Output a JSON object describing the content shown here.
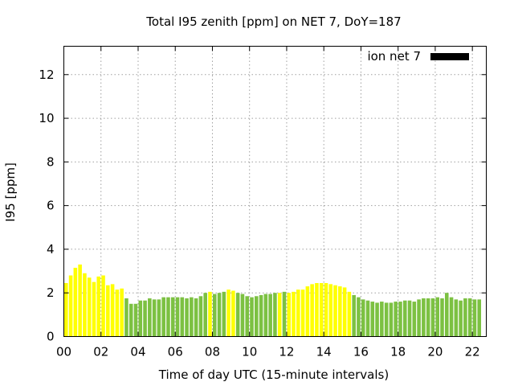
{
  "chart_data": {
    "type": "bar",
    "title": "Total I95 zenith [ppm] on NET 7, DoY=187",
    "xlabel": "Time of day UTC (15-minute intervals)",
    "ylabel": "I95 [ppm]",
    "ylim": [
      0,
      13.3
    ],
    "xlim": [
      0,
      22.75
    ],
    "y_ticks": [
      0,
      2,
      4,
      6,
      8,
      10,
      12
    ],
    "y_tick_labels": [
      "0",
      "2",
      "4",
      "6",
      "8",
      "10",
      "12"
    ],
    "x_ticks": [
      0,
      2,
      4,
      6,
      8,
      10,
      12,
      14,
      16,
      18,
      20,
      22
    ],
    "x_tick_labels": [
      "00",
      "02",
      "04",
      "06",
      "08",
      "10",
      "12",
      "14",
      "16",
      "18",
      "20",
      "22"
    ],
    "grid": true,
    "legend": {
      "label": "ion net 7",
      "color": "#000000",
      "placement": "top-right"
    },
    "colors": {
      "high": "#ffff00",
      "normal": "#7cc142"
    },
    "bar_interval_hours": 0.25,
    "bars": [
      {
        "x": 0.0,
        "v": 2.45,
        "c": "high"
      },
      {
        "x": 0.25,
        "v": 2.8,
        "c": "high"
      },
      {
        "x": 0.5,
        "v": 3.15,
        "c": "high"
      },
      {
        "x": 0.75,
        "v": 3.3,
        "c": "high"
      },
      {
        "x": 1.0,
        "v": 2.9,
        "c": "high"
      },
      {
        "x": 1.25,
        "v": 2.7,
        "c": "high"
      },
      {
        "x": 1.5,
        "v": 2.5,
        "c": "high"
      },
      {
        "x": 1.75,
        "v": 2.75,
        "c": "high"
      },
      {
        "x": 2.0,
        "v": 2.8,
        "c": "high"
      },
      {
        "x": 2.25,
        "v": 2.35,
        "c": "high"
      },
      {
        "x": 2.5,
        "v": 2.4,
        "c": "high"
      },
      {
        "x": 2.75,
        "v": 2.15,
        "c": "high"
      },
      {
        "x": 3.0,
        "v": 2.2,
        "c": "high"
      },
      {
        "x": 3.25,
        "v": 1.75,
        "c": "normal"
      },
      {
        "x": 3.5,
        "v": 1.5,
        "c": "normal"
      },
      {
        "x": 3.75,
        "v": 1.5,
        "c": "normal"
      },
      {
        "x": 4.0,
        "v": 1.65,
        "c": "normal"
      },
      {
        "x": 4.25,
        "v": 1.65,
        "c": "normal"
      },
      {
        "x": 4.5,
        "v": 1.75,
        "c": "normal"
      },
      {
        "x": 4.75,
        "v": 1.7,
        "c": "normal"
      },
      {
        "x": 5.0,
        "v": 1.7,
        "c": "normal"
      },
      {
        "x": 5.25,
        "v": 1.8,
        "c": "normal"
      },
      {
        "x": 5.5,
        "v": 1.8,
        "c": "normal"
      },
      {
        "x": 5.75,
        "v": 1.8,
        "c": "normal"
      },
      {
        "x": 6.0,
        "v": 1.8,
        "c": "normal"
      },
      {
        "x": 6.25,
        "v": 1.8,
        "c": "normal"
      },
      {
        "x": 6.5,
        "v": 1.75,
        "c": "normal"
      },
      {
        "x": 6.75,
        "v": 1.8,
        "c": "normal"
      },
      {
        "x": 7.0,
        "v": 1.75,
        "c": "normal"
      },
      {
        "x": 7.25,
        "v": 1.85,
        "c": "normal"
      },
      {
        "x": 7.5,
        "v": 2.0,
        "c": "normal"
      },
      {
        "x": 7.75,
        "v": 2.05,
        "c": "high"
      },
      {
        "x": 8.0,
        "v": 1.95,
        "c": "normal"
      },
      {
        "x": 8.25,
        "v": 2.0,
        "c": "normal"
      },
      {
        "x": 8.5,
        "v": 2.05,
        "c": "normal"
      },
      {
        "x": 8.75,
        "v": 2.15,
        "c": "high"
      },
      {
        "x": 9.0,
        "v": 2.1,
        "c": "high"
      },
      {
        "x": 9.25,
        "v": 2.0,
        "c": "normal"
      },
      {
        "x": 9.5,
        "v": 1.95,
        "c": "normal"
      },
      {
        "x": 9.75,
        "v": 1.85,
        "c": "normal"
      },
      {
        "x": 10.0,
        "v": 1.8,
        "c": "normal"
      },
      {
        "x": 10.25,
        "v": 1.85,
        "c": "normal"
      },
      {
        "x": 10.5,
        "v": 1.9,
        "c": "normal"
      },
      {
        "x": 10.75,
        "v": 1.95,
        "c": "normal"
      },
      {
        "x": 11.0,
        "v": 1.95,
        "c": "normal"
      },
      {
        "x": 11.25,
        "v": 2.0,
        "c": "normal"
      },
      {
        "x": 11.5,
        "v": 2.0,
        "c": "high"
      },
      {
        "x": 11.75,
        "v": 2.05,
        "c": "normal"
      },
      {
        "x": 12.0,
        "v": 2.0,
        "c": "high"
      },
      {
        "x": 12.25,
        "v": 2.05,
        "c": "high"
      },
      {
        "x": 12.5,
        "v": 2.15,
        "c": "high"
      },
      {
        "x": 12.75,
        "v": 2.15,
        "c": "high"
      },
      {
        "x": 13.0,
        "v": 2.3,
        "c": "high"
      },
      {
        "x": 13.25,
        "v": 2.4,
        "c": "high"
      },
      {
        "x": 13.5,
        "v": 2.45,
        "c": "high"
      },
      {
        "x": 13.75,
        "v": 2.45,
        "c": "high"
      },
      {
        "x": 14.0,
        "v": 2.45,
        "c": "high"
      },
      {
        "x": 14.25,
        "v": 2.4,
        "c": "high"
      },
      {
        "x": 14.5,
        "v": 2.35,
        "c": "high"
      },
      {
        "x": 14.75,
        "v": 2.3,
        "c": "high"
      },
      {
        "x": 15.0,
        "v": 2.25,
        "c": "high"
      },
      {
        "x": 15.25,
        "v": 2.05,
        "c": "high"
      },
      {
        "x": 15.5,
        "v": 1.9,
        "c": "normal"
      },
      {
        "x": 15.75,
        "v": 1.8,
        "c": "normal"
      },
      {
        "x": 16.0,
        "v": 1.7,
        "c": "normal"
      },
      {
        "x": 16.25,
        "v": 1.65,
        "c": "normal"
      },
      {
        "x": 16.5,
        "v": 1.6,
        "c": "normal"
      },
      {
        "x": 16.75,
        "v": 1.55,
        "c": "normal"
      },
      {
        "x": 17.0,
        "v": 1.6,
        "c": "normal"
      },
      {
        "x": 17.25,
        "v": 1.55,
        "c": "normal"
      },
      {
        "x": 17.5,
        "v": 1.55,
        "c": "normal"
      },
      {
        "x": 17.75,
        "v": 1.6,
        "c": "normal"
      },
      {
        "x": 18.0,
        "v": 1.6,
        "c": "normal"
      },
      {
        "x": 18.25,
        "v": 1.65,
        "c": "normal"
      },
      {
        "x": 18.5,
        "v": 1.65,
        "c": "normal"
      },
      {
        "x": 18.75,
        "v": 1.6,
        "c": "normal"
      },
      {
        "x": 19.0,
        "v": 1.7,
        "c": "normal"
      },
      {
        "x": 19.25,
        "v": 1.75,
        "c": "normal"
      },
      {
        "x": 19.5,
        "v": 1.75,
        "c": "normal"
      },
      {
        "x": 19.75,
        "v": 1.75,
        "c": "normal"
      },
      {
        "x": 20.0,
        "v": 1.8,
        "c": "normal"
      },
      {
        "x": 20.25,
        "v": 1.75,
        "c": "normal"
      },
      {
        "x": 20.5,
        "v": 2.0,
        "c": "normal"
      },
      {
        "x": 20.75,
        "v": 1.8,
        "c": "normal"
      },
      {
        "x": 21.0,
        "v": 1.7,
        "c": "normal"
      },
      {
        "x": 21.25,
        "v": 1.65,
        "c": "normal"
      },
      {
        "x": 21.5,
        "v": 1.75,
        "c": "normal"
      },
      {
        "x": 21.75,
        "v": 1.75,
        "c": "normal"
      },
      {
        "x": 22.0,
        "v": 1.7,
        "c": "normal"
      },
      {
        "x": 22.25,
        "v": 1.7,
        "c": "normal"
      }
    ]
  }
}
